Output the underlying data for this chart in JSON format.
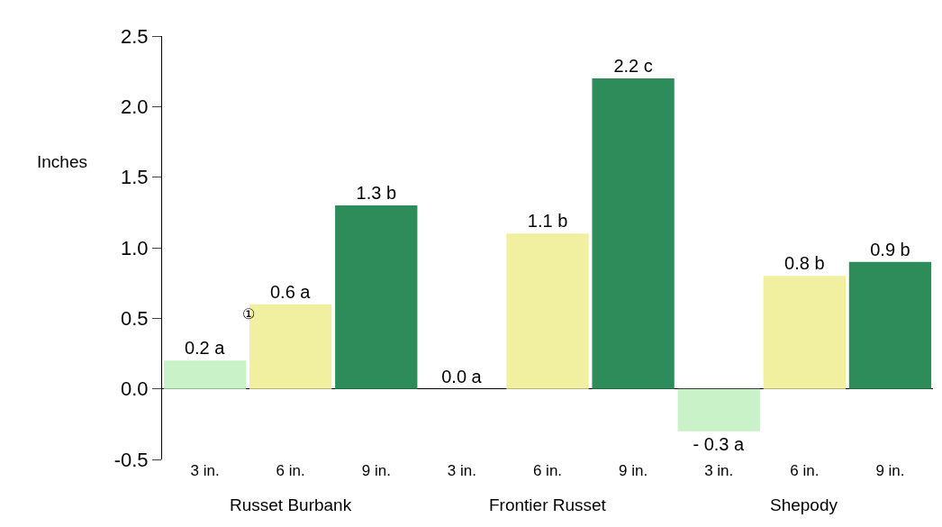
{
  "chart_data": {
    "type": "bar",
    "ylabel": "Inches",
    "categories": [
      "3 in.",
      "6 in.",
      "9 in.",
      "3 in.",
      "6 in.",
      "9 in.",
      "3 in.",
      "6 in.",
      "9 in."
    ],
    "values": [
      0.2,
      0.6,
      1.3,
      0.0,
      1.1,
      2.2,
      -0.3,
      0.8,
      0.9
    ],
    "colors": [
      "#c9f2c9",
      "#f0f0a0",
      "#2e8b5a",
      "#c9f2c9",
      "#f0f0a0",
      "#2e8b5a",
      "#c9f2c9",
      "#f0f0a0",
      "#2e8b5a"
    ],
    "value_labels": [
      "0.2 a",
      "0.6 a",
      "1.3 b",
      "0.0 a",
      "1.1 b",
      "2.2 c",
      "- 0.3 a",
      "0.8 b",
      "0.9 b"
    ],
    "annotations": [
      "①",
      "Russet Burbank",
      "Frontier Russet",
      "Shepody"
    ],
    "ylim": [
      -0.5,
      2.5
    ],
    "yticks": [
      {
        "value": -0.5,
        "label": "-0.5"
      },
      {
        "value": 0,
        "label": "0.0"
      },
      {
        "value": 0.5,
        "label": "0.5"
      },
      {
        "value": 1,
        "label": "1.0"
      },
      {
        "value": 1.5,
        "label": "1.5"
      },
      {
        "value": 2,
        "label": "2.0"
      },
      {
        "value": 2.5,
        "label": "2.5"
      }
    ]
  }
}
